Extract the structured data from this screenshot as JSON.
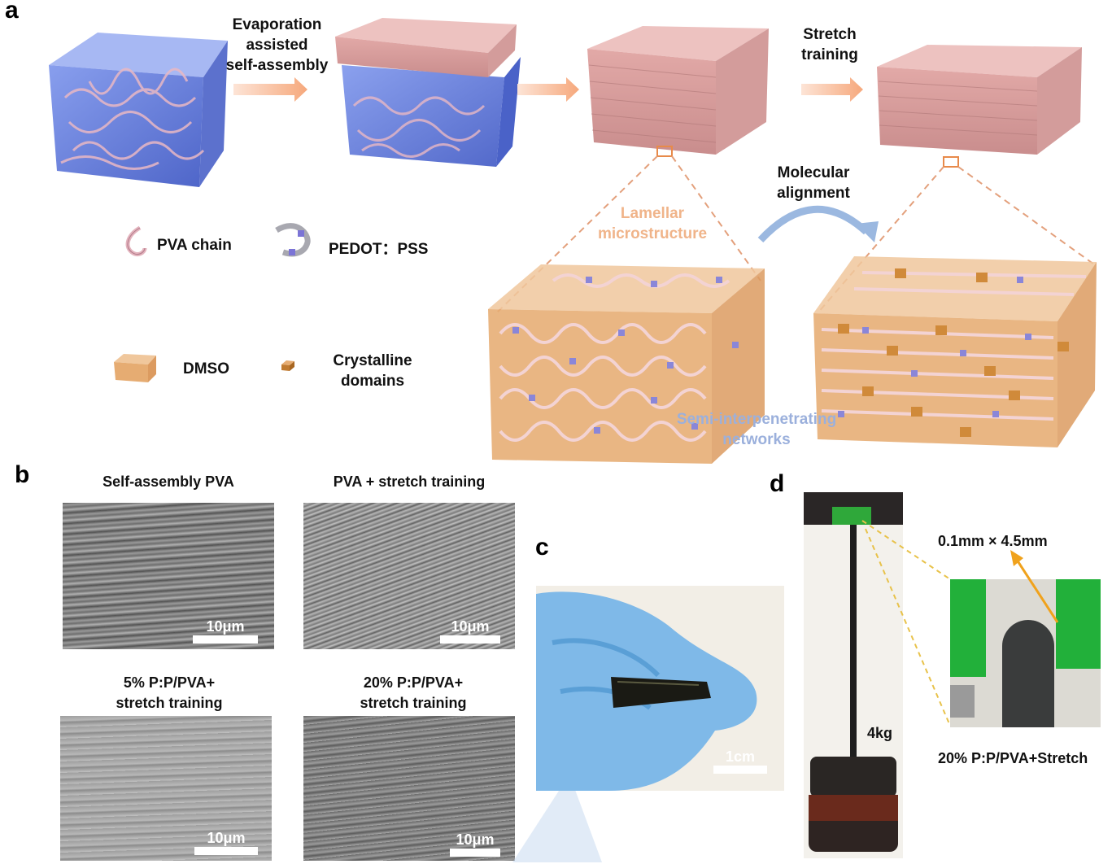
{
  "panels": {
    "a": "a",
    "b": "b",
    "c": "c",
    "d": "d"
  },
  "panel_a": {
    "step1": [
      "Evaporation",
      "assisted",
      "self-assembly"
    ],
    "step2": [
      "Stretch",
      "training"
    ],
    "step3": [
      "Molecular",
      "alignment"
    ],
    "lamellar": [
      "Lamellar",
      "microstructure"
    ],
    "semi": [
      "Semi-interpenetrating",
      "networks"
    ],
    "legend": {
      "pva": "PVA chain",
      "pedot": "PEDOT：PSS",
      "dmso": "DMSO",
      "crystal": [
        "Crystalline",
        "domains"
      ]
    },
    "colors": {
      "hydrogel": "#5b74d6",
      "film": "#e8b4b2",
      "dmso": "#e7b07a",
      "crystal": "#d08a3a",
      "pedot": "#8a86d8",
      "arrow": "#f6b48c",
      "mol_arrow": "#9bb8e0"
    }
  },
  "panel_b": {
    "tl_title": "Self-assembly PVA",
    "tr_title": "PVA + stretch training",
    "bl_title": [
      "5% P:P/PVA+",
      "stretch training"
    ],
    "br_title": [
      "20% P:P/PVA+",
      "stretch training"
    ],
    "scale": "10μm"
  },
  "panel_c": {
    "scale": "1cm"
  },
  "panel_d": {
    "weight": "4kg",
    "dims": "0.1mm × 4.5mm",
    "caption": "20% P:P/PVA+Stretch"
  }
}
